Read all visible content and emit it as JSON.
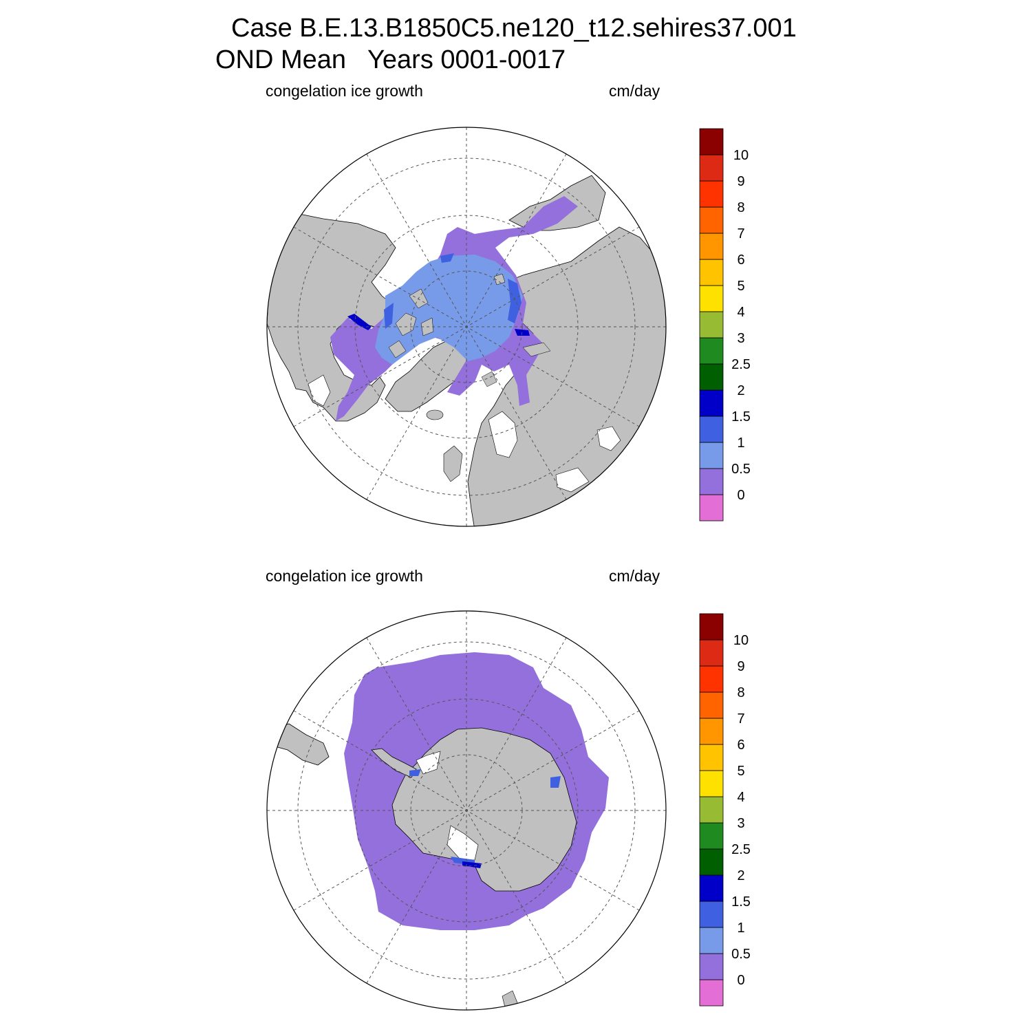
{
  "title": {
    "line1": "Case B.E.13.B1850C5.ne120_t12.sehires37.001",
    "line2": "OND Mean   Years 0001-0017"
  },
  "panels": [
    {
      "id": "arctic",
      "hemisphere": "north",
      "left_label": "congelation ice growth",
      "right_label": "cm/day"
    },
    {
      "id": "antarctic",
      "hemisphere": "south",
      "left_label": "congelation ice growth",
      "right_label": "cm/day"
    }
  ],
  "colorbar": {
    "units": "cm/day",
    "levels": [
      "0",
      "0.5",
      "1",
      "1.5",
      "2",
      "2.5",
      "3",
      "4",
      "5",
      "6",
      "7",
      "8",
      "9",
      "10"
    ],
    "colors": [
      "#e36fd6",
      "#9370db",
      "#789be9",
      "#3f61e1",
      "#0000c8",
      "#005f00",
      "#1f8a1f",
      "#98bb34",
      "#ffe100",
      "#ffc300",
      "#ff9600",
      "#ff6400",
      "#ff3300",
      "#dd2a15",
      "#8b0000"
    ]
  },
  "colors": {
    "land": "#c0c0c0",
    "ocean": "#ffffff",
    "ice_low": "#9370db",
    "ice_mid": "#789be9",
    "ice_high": "#3f61e1",
    "ice_max": "#0000c8"
  }
}
